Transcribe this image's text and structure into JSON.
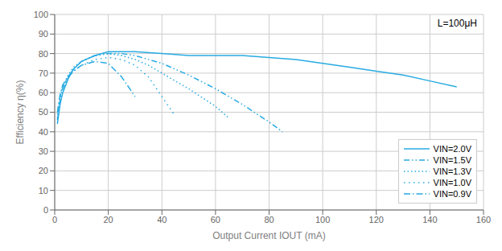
{
  "chart_data": {
    "type": "line",
    "annotation": "L=100μH",
    "x_label": "Output Current IOUT (mA)",
    "y_label": "Efficiency  η(%)",
    "xlim": [
      0,
      160
    ],
    "ylim": [
      0,
      100
    ],
    "xticks": [
      0,
      20,
      40,
      60,
      80,
      100,
      120,
      140,
      160
    ],
    "yticks": [
      0,
      10,
      20,
      30,
      40,
      50,
      60,
      70,
      80,
      90,
      100
    ],
    "grid": true,
    "legend": "lower right",
    "series": [
      {
        "name": "VIN=2.0V",
        "color": "#29ABE2",
        "line_style": "solid",
        "x": [
          1,
          2,
          3,
          5,
          7,
          10,
          15,
          20,
          30,
          40,
          50,
          60,
          70,
          80,
          90,
          100,
          110,
          120,
          130,
          140,
          150
        ],
        "values": [
          44,
          54,
          60,
          67,
          72,
          76,
          79,
          81,
          81,
          80,
          79,
          79,
          79,
          78,
          77,
          75,
          73,
          71,
          69,
          66,
          63
        ]
      },
      {
        "name": "VIN=1.5V",
        "color": "#29ABE2",
        "line_style": "dashdotdot",
        "x": [
          1,
          2,
          3,
          5,
          7,
          10,
          15,
          20,
          25,
          30,
          35,
          40,
          50,
          60,
          70,
          80,
          85
        ],
        "values": [
          46,
          56,
          62,
          68,
          72,
          76,
          79,
          80,
          80,
          79,
          77,
          75,
          69,
          62,
          54,
          45,
          40
        ]
      },
      {
        "name": "VIN=1.3V",
        "color": "#29ABE2",
        "line_style": "dotted",
        "x": [
          1,
          2,
          3,
          5,
          7,
          10,
          15,
          20,
          25,
          30,
          35,
          40,
          50,
          60,
          65
        ],
        "values": [
          47,
          57,
          63,
          69,
          73,
          76,
          79,
          80,
          79,
          77,
          74,
          70,
          62,
          53,
          47
        ]
      },
      {
        "name": "VIN=1.0V",
        "color": "#29ABE2",
        "line_style": "loosely_dotted",
        "x": [
          1,
          2,
          3,
          5,
          7,
          10,
          15,
          20,
          25,
          30,
          35,
          40,
          45
        ],
        "values": [
          49,
          58,
          63,
          68,
          71,
          74,
          77,
          78,
          77,
          74,
          68,
          58,
          48
        ]
      },
      {
        "name": "VIN=0.9V",
        "color": "#29ABE2",
        "line_style": "longdashdot",
        "x": [
          1,
          2,
          3,
          5,
          7,
          10,
          15,
          20,
          25,
          30
        ],
        "values": [
          50,
          59,
          64,
          68,
          71,
          74,
          76,
          75,
          68,
          58
        ]
      }
    ]
  }
}
